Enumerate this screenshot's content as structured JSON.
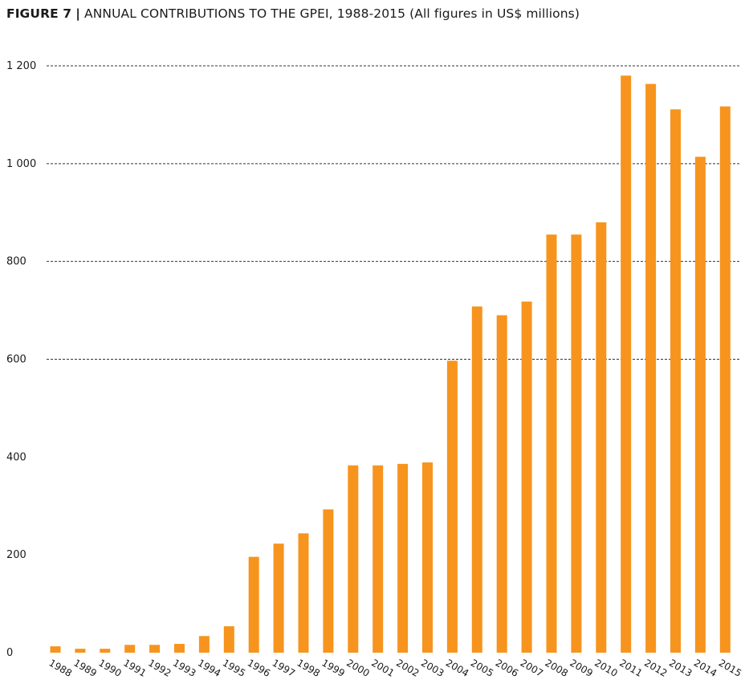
{
  "title": {
    "figure_label": "FIGURE 7",
    "separator": "|",
    "text": "ANNUAL CONTRIBUTIONS TO THE GPEI, 1988-2015 (All figures in US$ millions)"
  },
  "colors": {
    "bar": "#f7941d",
    "grid": "#333333",
    "text": "#1a1a1a"
  },
  "chart_data": {
    "type": "bar",
    "title": "ANNUAL CONTRIBUTIONS TO THE GPEI, 1988-2015 (All figures in US$ millions)",
    "xlabel": "",
    "ylabel": "",
    "ylim": [
      0,
      1200
    ],
    "yticks": [
      0,
      200,
      400,
      600,
      800,
      1000,
      1200
    ],
    "ytick_labels": [
      "0",
      "200",
      "400",
      "600",
      "800",
      "1 000",
      "1 200"
    ],
    "grid": "dashed horizontal at 600, 800, 1000, 1200",
    "categories": [
      "1988",
      "1989",
      "1990",
      "1991",
      "1992",
      "1993",
      "1994",
      "1995",
      "1996",
      "1997",
      "1998",
      "1999",
      "2000",
      "2001",
      "2002",
      "2003",
      "2004",
      "2005",
      "2006",
      "2007",
      "2008",
      "2009",
      "2010",
      "2011",
      "2012",
      "2013",
      "2014",
      "2015"
    ],
    "values": [
      13,
      8,
      8,
      16,
      16,
      18,
      34,
      54,
      196,
      223,
      244,
      293,
      383,
      383,
      386,
      389,
      597,
      708,
      690,
      718,
      855,
      855,
      880,
      1180,
      1163,
      1111,
      1014,
      1117
    ]
  }
}
